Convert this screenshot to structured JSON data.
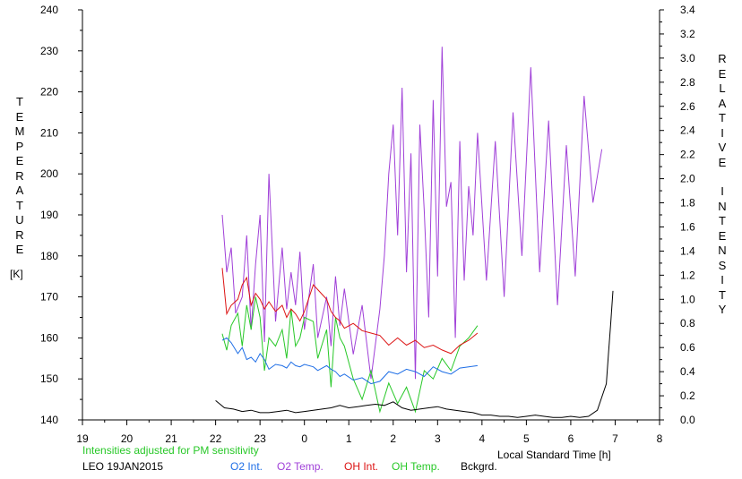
{
  "chart_data": {
    "type": "line",
    "left_axis": {
      "label": "TEMPERATURE",
      "unit": "[K]",
      "range": [
        140,
        240
      ],
      "ticks": [
        140,
        150,
        160,
        170,
        180,
        190,
        200,
        210,
        220,
        230,
        240
      ]
    },
    "right_axis": {
      "label_line1": "RELATIVE",
      "label_line2": "INTENSITY",
      "range": [
        0.0,
        3.4
      ],
      "ticks": [
        "0.0",
        "0.2",
        "0.4",
        "0.6",
        "0.8",
        "1.0",
        "1.2",
        "1.4",
        "1.6",
        "1.8",
        "2.0",
        "2.2",
        "2.4",
        "2.6",
        "2.8",
        "3.0",
        "3.2",
        "3.4"
      ]
    },
    "x_axis": {
      "label": "Local Standard Time [h]",
      "range": [
        19,
        32
      ],
      "tick_labels": [
        "19",
        "20",
        "21",
        "22",
        "23",
        "0",
        "1",
        "2",
        "3",
        "4",
        "5",
        "6",
        "7",
        "8"
      ]
    },
    "note": "Intensities adjusted for PM sensitivity",
    "caption": "LEO 19JAN2015",
    "grid": false,
    "series": [
      {
        "name": "O2 Int.",
        "color": "#1e6ee6",
        "axis": "right",
        "x": [
          22.15,
          22.25,
          22.35,
          22.5,
          22.6,
          22.7,
          22.8,
          22.9,
          23.0,
          23.1,
          23.2,
          23.35,
          23.5,
          23.6,
          23.7,
          23.8,
          23.9,
          24.0,
          24.2,
          24.3,
          24.5,
          24.6,
          24.7,
          24.8,
          24.9,
          25.1,
          25.3,
          25.5,
          25.7,
          25.9,
          26.1,
          26.3,
          26.5,
          26.7,
          26.9,
          27.1,
          27.3,
          27.5,
          27.7,
          27.9
        ],
        "y": [
          0.66,
          0.68,
          0.64,
          0.55,
          0.6,
          0.5,
          0.52,
          0.48,
          0.55,
          0.5,
          0.42,
          0.46,
          0.45,
          0.43,
          0.48,
          0.45,
          0.44,
          0.46,
          0.44,
          0.41,
          0.45,
          0.42,
          0.4,
          0.36,
          0.38,
          0.33,
          0.35,
          0.3,
          0.32,
          0.4,
          0.38,
          0.42,
          0.4,
          0.36,
          0.44,
          0.4,
          0.38,
          0.43,
          0.44,
          0.45
        ]
      },
      {
        "name": "O2 Temp.",
        "color": "#a040d8",
        "axis": "left",
        "x": [
          22.15,
          22.25,
          22.35,
          22.45,
          22.6,
          22.7,
          22.8,
          22.9,
          23.0,
          23.1,
          23.2,
          23.35,
          23.5,
          23.6,
          23.7,
          23.8,
          23.9,
          24.0,
          24.2,
          24.3,
          24.5,
          24.6,
          24.7,
          24.8,
          24.9,
          25.1,
          25.3,
          25.5,
          25.7,
          25.8,
          25.9,
          26.0,
          26.1,
          26.2,
          26.3,
          26.4,
          26.5,
          26.6,
          26.7,
          26.8,
          26.9,
          27.0,
          27.1,
          27.2,
          27.3,
          27.4,
          27.5,
          27.6,
          27.7,
          27.8,
          27.9,
          28.1,
          28.3,
          28.5,
          28.7,
          28.9,
          29.1,
          29.3,
          29.5,
          29.7,
          29.9,
          30.1,
          30.3,
          30.5,
          30.7
        ],
        "y": [
          190,
          176,
          182,
          166,
          170,
          185,
          162,
          178,
          190,
          159,
          200,
          164,
          182,
          167,
          176,
          168,
          181,
          162,
          178,
          160,
          170,
          158,
          175,
          163,
          172,
          156,
          168,
          150,
          167,
          180,
          200,
          212,
          185,
          221,
          176,
          205,
          150,
          212,
          191,
          165,
          218,
          175,
          231,
          192,
          198,
          160,
          208,
          174,
          197,
          185,
          210,
          174,
          208,
          170,
          215,
          180,
          226,
          176,
          213,
          168,
          207,
          175,
          219,
          193,
          206
        ]
      },
      {
        "name": "OH Int.",
        "color": "#dc1414",
        "axis": "right",
        "x": [
          22.15,
          22.25,
          22.35,
          22.5,
          22.6,
          22.7,
          22.8,
          22.9,
          23.0,
          23.1,
          23.2,
          23.35,
          23.5,
          23.6,
          23.7,
          23.8,
          23.9,
          24.0,
          24.2,
          24.3,
          24.5,
          24.6,
          24.7,
          24.8,
          24.9,
          25.1,
          25.3,
          25.5,
          25.7,
          25.9,
          26.1,
          26.3,
          26.5,
          26.7,
          26.9,
          27.1,
          27.3,
          27.5,
          27.7,
          27.9
        ],
        "y": [
          1.26,
          0.88,
          0.95,
          1.0,
          1.12,
          1.18,
          0.95,
          1.05,
          1.0,
          0.92,
          0.98,
          0.9,
          0.95,
          0.85,
          0.92,
          0.88,
          0.82,
          0.9,
          1.12,
          1.08,
          1.0,
          0.9,
          0.85,
          0.82,
          0.76,
          0.8,
          0.74,
          0.72,
          0.7,
          0.62,
          0.68,
          0.62,
          0.66,
          0.6,
          0.62,
          0.58,
          0.55,
          0.62,
          0.66,
          0.72
        ]
      },
      {
        "name": "OH Temp.",
        "color": "#28c828",
        "axis": "left",
        "x": [
          22.15,
          22.25,
          22.35,
          22.5,
          22.6,
          22.7,
          22.8,
          22.9,
          23.0,
          23.1,
          23.2,
          23.35,
          23.5,
          23.6,
          23.7,
          23.8,
          23.9,
          24.0,
          24.2,
          24.3,
          24.5,
          24.6,
          24.7,
          24.8,
          24.9,
          25.1,
          25.3,
          25.5,
          25.7,
          25.9,
          26.1,
          26.3,
          26.5,
          26.7,
          26.9,
          27.1,
          27.3,
          27.5,
          27.7,
          27.9
        ],
        "y": [
          161,
          157,
          163,
          166,
          158,
          168,
          162,
          170,
          165,
          152,
          160,
          158,
          162,
          155,
          167,
          158,
          160,
          165,
          164,
          155,
          162,
          148,
          165,
          160,
          158,
          150,
          145,
          152,
          142,
          149,
          144,
          148,
          142,
          152,
          150,
          155,
          152,
          158,
          160,
          163
        ]
      },
      {
        "name": "Bckgrd.",
        "color": "#000000",
        "axis": "right",
        "x": [
          22.0,
          22.2,
          22.4,
          22.6,
          22.8,
          23.0,
          23.2,
          23.4,
          23.6,
          23.8,
          24.0,
          24.2,
          24.4,
          24.6,
          24.8,
          25.0,
          25.2,
          25.4,
          25.6,
          25.8,
          26.0,
          26.2,
          26.4,
          26.6,
          26.8,
          27.0,
          27.2,
          27.4,
          27.6,
          27.8,
          28.0,
          28.2,
          28.4,
          28.6,
          28.8,
          29.0,
          29.2,
          29.4,
          29.6,
          29.8,
          30.0,
          30.2,
          30.4,
          30.6,
          30.8,
          30.85,
          30.9,
          30.95
        ],
        "y": [
          0.16,
          0.1,
          0.09,
          0.07,
          0.08,
          0.06,
          0.06,
          0.07,
          0.08,
          0.06,
          0.07,
          0.08,
          0.09,
          0.1,
          0.12,
          0.1,
          0.11,
          0.12,
          0.13,
          0.12,
          0.15,
          0.1,
          0.08,
          0.09,
          0.1,
          0.11,
          0.09,
          0.08,
          0.07,
          0.06,
          0.04,
          0.04,
          0.03,
          0.03,
          0.02,
          0.03,
          0.04,
          0.03,
          0.02,
          0.02,
          0.03,
          0.02,
          0.03,
          0.08,
          0.3,
          0.55,
          0.8,
          1.07
        ]
      }
    ]
  }
}
